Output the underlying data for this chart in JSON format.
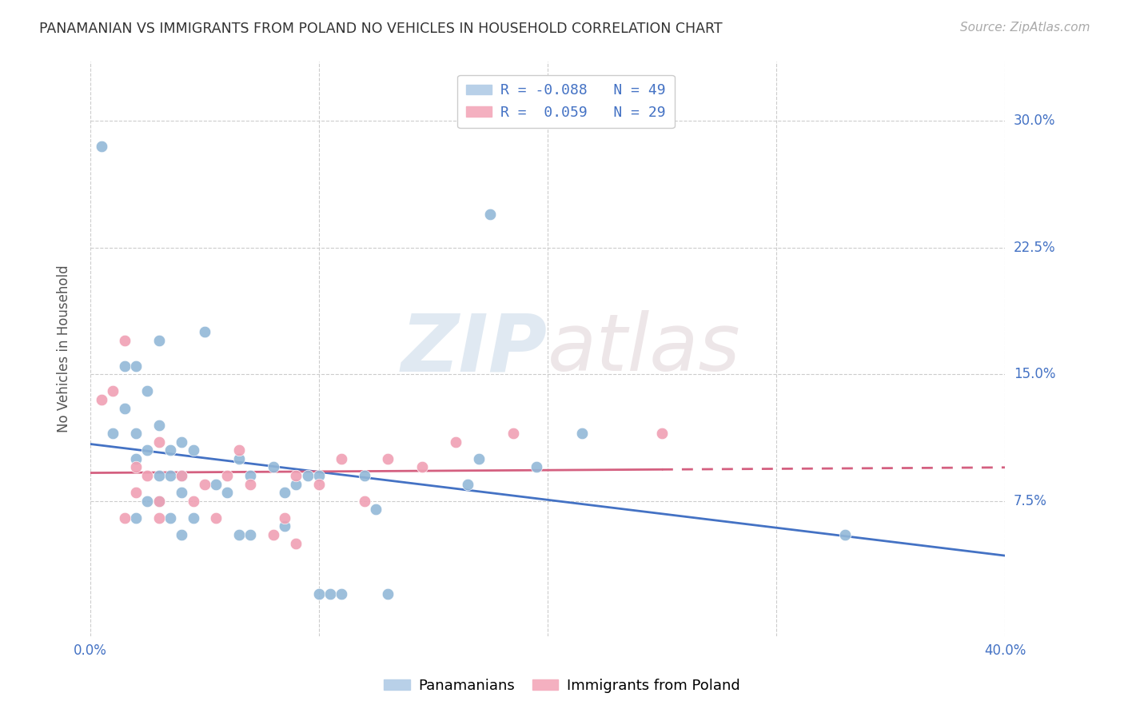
{
  "title": "PANAMANIAN VS IMMIGRANTS FROM POLAND NO VEHICLES IN HOUSEHOLD CORRELATION CHART",
  "source": "Source: ZipAtlas.com",
  "ylabel": "No Vehicles in Household",
  "yticks_labels": [
    "7.5%",
    "15.0%",
    "22.5%",
    "30.0%"
  ],
  "ytick_vals": [
    0.075,
    0.15,
    0.225,
    0.3
  ],
  "xlim": [
    0.0,
    0.4
  ],
  "ylim": [
    -0.005,
    0.335
  ],
  "blue_color": "#92b8d8",
  "pink_color": "#f0a0b4",
  "blue_line_color": "#4472c4",
  "pink_line_color": "#d46080",
  "watermark_zip": "ZIP",
  "watermark_atlas": "atlas",
  "panamanians_x": [
    0.005,
    0.01,
    0.015,
    0.015,
    0.02,
    0.02,
    0.02,
    0.02,
    0.025,
    0.025,
    0.025,
    0.03,
    0.03,
    0.03,
    0.03,
    0.035,
    0.035,
    0.035,
    0.04,
    0.04,
    0.04,
    0.04,
    0.045,
    0.045,
    0.05,
    0.055,
    0.06,
    0.065,
    0.065,
    0.07,
    0.07,
    0.08,
    0.085,
    0.085,
    0.09,
    0.095,
    0.1,
    0.1,
    0.105,
    0.11,
    0.12,
    0.125,
    0.13,
    0.17,
    0.195,
    0.215,
    0.33,
    0.165,
    0.175
  ],
  "panamanians_y": [
    0.285,
    0.115,
    0.155,
    0.13,
    0.155,
    0.115,
    0.1,
    0.065,
    0.14,
    0.105,
    0.075,
    0.17,
    0.12,
    0.09,
    0.075,
    0.105,
    0.09,
    0.065,
    0.11,
    0.09,
    0.08,
    0.055,
    0.105,
    0.065,
    0.175,
    0.085,
    0.08,
    0.1,
    0.055,
    0.09,
    0.055,
    0.095,
    0.08,
    0.06,
    0.085,
    0.09,
    0.09,
    0.02,
    0.02,
    0.02,
    0.09,
    0.07,
    0.02,
    0.1,
    0.095,
    0.115,
    0.055,
    0.085,
    0.245
  ],
  "poland_x": [
    0.005,
    0.01,
    0.015,
    0.015,
    0.02,
    0.02,
    0.025,
    0.03,
    0.03,
    0.04,
    0.045,
    0.05,
    0.055,
    0.06,
    0.065,
    0.07,
    0.08,
    0.085,
    0.09,
    0.09,
    0.1,
    0.11,
    0.12,
    0.13,
    0.145,
    0.16,
    0.185,
    0.25,
    0.03
  ],
  "poland_y": [
    0.135,
    0.14,
    0.17,
    0.065,
    0.095,
    0.08,
    0.09,
    0.11,
    0.075,
    0.09,
    0.075,
    0.085,
    0.065,
    0.09,
    0.105,
    0.085,
    0.055,
    0.065,
    0.09,
    0.05,
    0.085,
    0.1,
    0.075,
    0.1,
    0.095,
    0.11,
    0.115,
    0.115,
    0.065
  ]
}
